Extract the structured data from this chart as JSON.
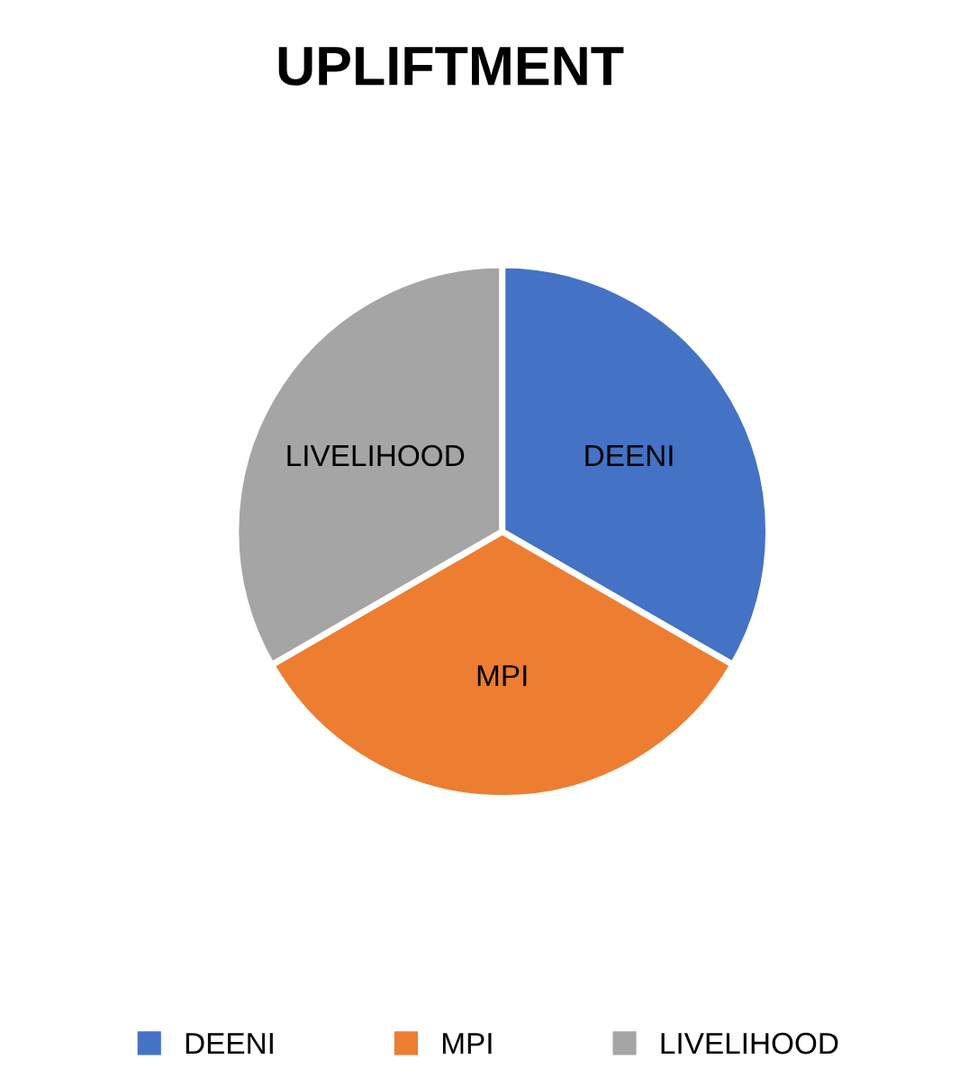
{
  "chart_data": {
    "type": "pie",
    "title": "UPLIFTMENT",
    "categories": [
      "DEENI",
      "MPI",
      "LIVELIHOOD"
    ],
    "values": [
      33.33,
      33.33,
      33.34
    ],
    "colors": [
      "#4472c4",
      "#ed7d31",
      "#a5a5a5"
    ],
    "legend": "bottom"
  }
}
